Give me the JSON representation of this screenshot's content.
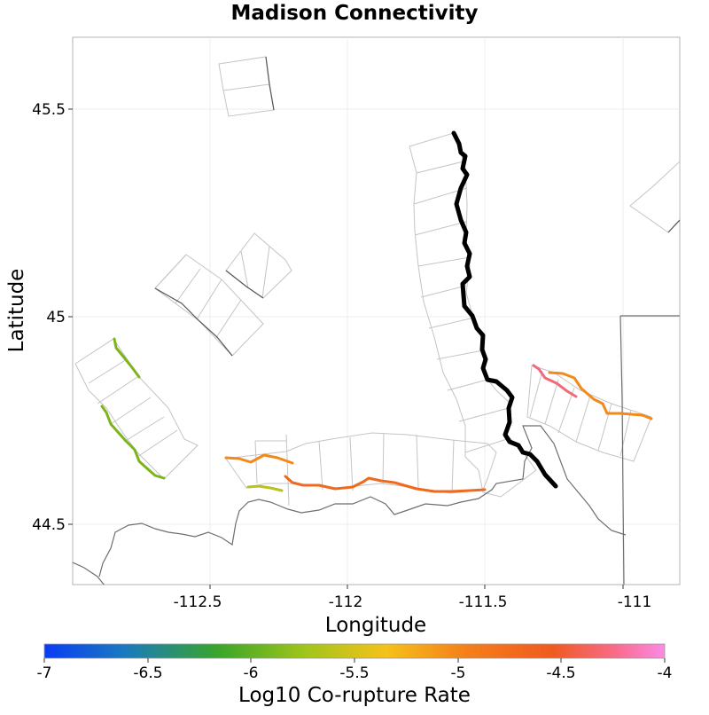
{
  "title": "Madison Connectivity",
  "x_axis": {
    "label": "Longitude",
    "ticks": [
      "-112.5",
      "-112",
      "-111.5",
      "-111"
    ],
    "range": [
      -112.93,
      -111.87
    ]
  },
  "y_axis": {
    "label": "Latitude",
    "ticks": [
      "44.5",
      "45",
      "45.5"
    ],
    "range": [
      44.36,
      45.68
    ]
  },
  "colorbar": {
    "label": "Log10 Co-rupture Rate",
    "ticks": [
      "-7",
      "-6.5",
      "-6",
      "-5.5",
      "-5",
      "-4.5",
      "-4"
    ],
    "range": [
      -7,
      -4
    ],
    "colors": [
      "#0a3cf5",
      "#1a7abf",
      "#3aa52a",
      "#a0c51a",
      "#f5c21a",
      "#f57f1a",
      "#ef5a20",
      "#f96a8a",
      "#fa8be6"
    ]
  },
  "highlight": {
    "source_fault_color": "#000000"
  }
}
